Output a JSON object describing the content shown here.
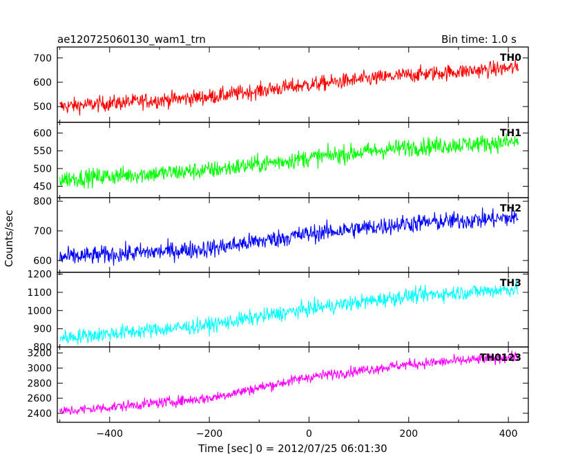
{
  "chart_data": {
    "type": "line",
    "title": "ae120725060130_wam1_trn",
    "bin_time_label": "Bin time: 1.0 s",
    "xlabel": "Time [sec] 0 = 2012/07/25 06:01:30",
    "ylabel": "Counts/sec",
    "xlim": [
      -505,
      440
    ],
    "x_range": [
      -500,
      420
    ],
    "x_ticks": [
      -400,
      -200,
      0,
      200,
      400
    ],
    "x_tick_labels": [
      "−400",
      "−200",
      "0",
      "200",
      "400"
    ],
    "grid": false,
    "panels": [
      {
        "name": "TH0",
        "color": "#ff0000",
        "ylim": [
          435,
          745
        ],
        "y_ticks": [
          500,
          600,
          700
        ],
        "y_tick_labels": [
          "500",
          "600",
          "700"
        ],
        "trend": [
          [
            -500,
            500
          ],
          [
            -200,
            540
          ],
          [
            0,
            590
          ],
          [
            200,
            630
          ],
          [
            420,
            660
          ]
        ],
        "noise": 23
      },
      {
        "name": "TH1",
        "color": "#00ff00",
        "ylim": [
          418,
          630
        ],
        "y_ticks": [
          450,
          500,
          550,
          600
        ],
        "y_tick_labels": [
          "450",
          "500",
          "550",
          "600"
        ],
        "trend": [
          [
            -500,
            470
          ],
          [
            -200,
            495
          ],
          [
            0,
            530
          ],
          [
            200,
            560
          ],
          [
            420,
            575
          ]
        ],
        "noise": 18
      },
      {
        "name": "TH2",
        "color": "#0000ff",
        "ylim": [
          560,
          812
        ],
        "y_ticks": [
          600,
          700,
          800
        ],
        "y_tick_labels": [
          "600",
          "700",
          "800"
        ],
        "trend": [
          [
            -500,
            610
          ],
          [
            -200,
            640
          ],
          [
            0,
            690
          ],
          [
            200,
            725
          ],
          [
            420,
            745
          ]
        ],
        "noise": 22
      },
      {
        "name": "TH3",
        "color": "#00ffff",
        "ylim": [
          800,
          1210
        ],
        "y_ticks": [
          800,
          900,
          1000,
          1100,
          1200
        ],
        "y_tick_labels": [
          "800",
          "900",
          "1000",
          "1100",
          "1200"
        ],
        "trend": [
          [
            -500,
            850
          ],
          [
            -200,
            920
          ],
          [
            0,
            1010
          ],
          [
            200,
            1080
          ],
          [
            420,
            1120
          ]
        ],
        "noise": 30
      },
      {
        "name": "TH0123",
        "color": "#ff00ff",
        "ylim": [
          2280,
          3280
        ],
        "y_ticks": [
          2400,
          2600,
          2800,
          3000,
          3200
        ],
        "y_tick_labels": [
          "2400",
          "2600",
          "2800",
          "3000",
          "3200"
        ],
        "trend": [
          [
            -500,
            2420
          ],
          [
            -200,
            2600
          ],
          [
            0,
            2880
          ],
          [
            200,
            3050
          ],
          [
            420,
            3150
          ]
        ],
        "noise": 50
      }
    ]
  }
}
